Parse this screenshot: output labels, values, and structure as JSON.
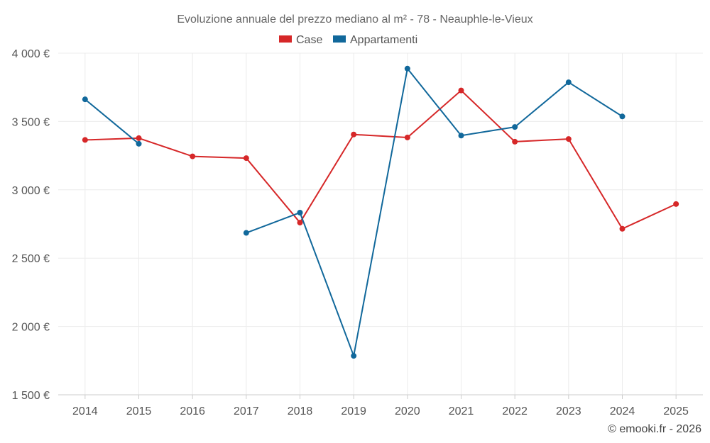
{
  "chart_data": {
    "type": "line",
    "title": "Evoluzione annuale del prezzo mediano al m² - 78 - Neauphle-le-Vieux",
    "categories": [
      "2014",
      "2015",
      "2016",
      "2017",
      "2018",
      "2019",
      "2020",
      "2021",
      "2022",
      "2023",
      "2024",
      "2025"
    ],
    "ylim": [
      1500,
      4000
    ],
    "yticks": [
      1500,
      2000,
      2500,
      3000,
      3500,
      4000
    ],
    "ytick_labels": [
      "1 500 €",
      "2 000 €",
      "2 500 €",
      "3 000 €",
      "3 500 €",
      "4 000 €"
    ],
    "grid": true,
    "legend_position": "top-center",
    "series": [
      {
        "name": "Case",
        "color": "#d62728",
        "values": [
          3365,
          3378,
          3245,
          3232,
          2760,
          3405,
          3383,
          3727,
          3352,
          3372,
          2715,
          2896
        ]
      },
      {
        "name": "Appartamenti",
        "color": "#11689b",
        "values": [
          3662,
          3337,
          null,
          2685,
          2833,
          1785,
          3887,
          3397,
          3460,
          3787,
          3537,
          null
        ]
      }
    ]
  },
  "credit": "© emooki.fr - 2026"
}
